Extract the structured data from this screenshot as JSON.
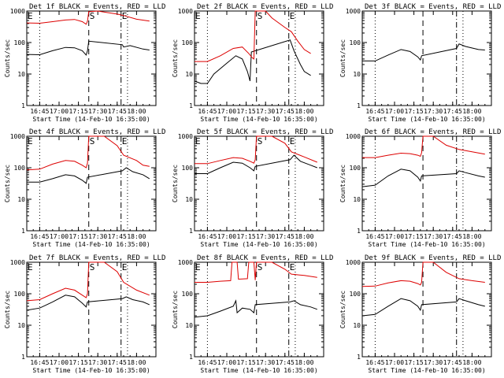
{
  "colors": {
    "events": "#000000",
    "lld": "#dd0000",
    "axes": "#000000",
    "background": "#ffffff"
  },
  "chart_data": [
    {
      "type": "line",
      "title": "Det 1f BLACK = Events, RED = LLD",
      "xlabel": "Start Time (14-Feb-10 16:35:00)",
      "ylabel": "Counts/sec",
      "yscale": "log",
      "ylim": [
        1,
        1000
      ],
      "xticks": [
        "16:45",
        "17:00",
        "17:15",
        "17:30",
        "17:45",
        "18:00"
      ],
      "yticks": [
        "1",
        "10",
        "100",
        "1000"
      ],
      "markers": [
        {
          "label": "E",
          "time": "16:35",
          "style": "dotted"
        },
        {
          "label": "",
          "time": "16:45",
          "style": "dotted"
        },
        {
          "label": "S",
          "time": "17:23",
          "style": "dashed"
        },
        {
          "label": "E",
          "time": "17:48",
          "style": "dashdot"
        },
        {
          "label": "",
          "time": "17:53",
          "style": "dotted"
        }
      ],
      "series": [
        {
          "name": "Events",
          "times": [
            "16:35",
            "16:45",
            "16:55",
            "17:05",
            "17:12",
            "17:18",
            "17:21",
            "17:22",
            "17:23",
            "17:49",
            "17:50",
            "17:55",
            "18:05",
            "18:10"
          ],
          "values": [
            42,
            41,
            55,
            70,
            68,
            55,
            40,
            55,
            110,
            85,
            72,
            80,
            62,
            58
          ]
        },
        {
          "name": "LLD",
          "times": [
            "16:35",
            "16:45",
            "16:55",
            "17:05",
            "17:12",
            "17:18",
            "17:21",
            "17:22",
            "17:23",
            "17:30",
            "17:45",
            "17:50",
            "18:00",
            "18:10"
          ],
          "values": [
            420,
            410,
            460,
            520,
            540,
            460,
            380,
            480,
            950,
            1000,
            800,
            720,
            550,
            480
          ]
        }
      ]
    },
    {
      "type": "line",
      "title": "Det 2f BLACK = Events, RED = LLD",
      "xlabel": "Start Time (14-Feb-10 16:35:00)",
      "ylabel": "Counts/sec",
      "yscale": "log",
      "ylim": [
        1,
        1000
      ],
      "xticks": [
        "16:45",
        "17:00",
        "17:15",
        "17:30",
        "17:45",
        "18:00"
      ],
      "yticks": [
        "1",
        "10",
        "100",
        "1000"
      ],
      "markers": [
        {
          "label": "E",
          "time": "16:35",
          "style": "dotted"
        },
        {
          "label": "",
          "time": "16:45",
          "style": "dotted"
        },
        {
          "label": "S",
          "time": "17:23",
          "style": "dashed"
        },
        {
          "label": "E",
          "time": "17:48",
          "style": "dashdot"
        },
        {
          "label": "",
          "time": "17:53",
          "style": "dotted"
        }
      ],
      "series": [
        {
          "name": "Events",
          "times": [
            "16:35",
            "16:40",
            "16:45",
            "16:50",
            "17:00",
            "17:07",
            "17:12",
            "17:16",
            "17:18",
            "17:19",
            "17:49",
            "17:52",
            "17:57",
            "18:00",
            "18:05"
          ],
          "values": [
            6,
            5,
            5,
            10,
            22,
            38,
            30,
            12,
            6,
            50,
            120,
            55,
            20,
            12,
            9
          ]
        },
        {
          "name": "LLD",
          "times": [
            "16:35",
            "16:45",
            "16:55",
            "17:05",
            "17:12",
            "17:17",
            "17:20",
            "17:21",
            "17:22",
            "17:30",
            "17:35",
            "17:45",
            "17:50",
            "17:55",
            "18:00",
            "18:05"
          ],
          "values": [
            25,
            25,
            38,
            65,
            72,
            45,
            32,
            30,
            1000,
            1000,
            600,
            300,
            220,
            110,
            60,
            45
          ]
        }
      ]
    },
    {
      "type": "line",
      "title": "Det 3f BLACK = Events, RED = LLD",
      "xlabel": "Start Time (14-Feb-10 16:35:00)",
      "ylabel": "Counts/sec",
      "yscale": "log",
      "ylim": [
        1,
        1000
      ],
      "xticks": [
        "16:45",
        "17:00",
        "17:15",
        "17:30",
        "17:45",
        "18:00"
      ],
      "yticks": [
        "1",
        "10",
        "100",
        "1000"
      ],
      "markers": [
        {
          "label": "",
          "time": "16:45",
          "style": "dotted"
        },
        {
          "label": "",
          "time": "17:22",
          "style": "dashed"
        },
        {
          "label": "",
          "time": "17:48",
          "style": "dashdot"
        },
        {
          "label": "",
          "time": "17:53",
          "style": "dotted"
        }
      ],
      "series": [
        {
          "name": "Events",
          "times": [
            "16:35",
            "16:45",
            "16:55",
            "17:05",
            "17:12",
            "17:18",
            "17:20",
            "17:21",
            "17:48",
            "17:50",
            "17:55",
            "18:05",
            "18:10"
          ],
          "values": [
            26,
            26,
            40,
            60,
            52,
            35,
            28,
            38,
            65,
            90,
            75,
            60,
            58
          ]
        }
      ]
    },
    {
      "type": "line",
      "title": "Det 4f BLACK = Events, RED = LLD",
      "xlabel": "Start Time (14-Feb-10 16:35:00)",
      "ylabel": "Counts/sec",
      "yscale": "log",
      "ylim": [
        1,
        1000
      ],
      "xticks": [
        "16:45",
        "17:00",
        "17:15",
        "17:30",
        "17:45",
        "18:00"
      ],
      "yticks": [
        "1",
        "10",
        "100",
        "1000"
      ],
      "markers": [
        {
          "label": "E",
          "time": "16:35",
          "style": "dotted"
        },
        {
          "label": "",
          "time": "16:45",
          "style": "dotted"
        },
        {
          "label": "S",
          "time": "17:23",
          "style": "dashed"
        },
        {
          "label": "E",
          "time": "17:48",
          "style": "dashdot"
        },
        {
          "label": "",
          "time": "17:53",
          "style": "dotted"
        }
      ],
      "series": [
        {
          "name": "Events",
          "times": [
            "16:35",
            "16:45",
            "16:55",
            "17:05",
            "17:12",
            "17:18",
            "17:21",
            "17:22",
            "17:49",
            "17:52",
            "17:57",
            "18:05",
            "18:10"
          ],
          "values": [
            35,
            35,
            45,
            60,
            55,
            40,
            32,
            50,
            80,
            100,
            75,
            60,
            45
          ]
        },
        {
          "name": "LLD",
          "times": [
            "16:35",
            "16:45",
            "16:55",
            "17:05",
            "17:12",
            "17:18",
            "17:21",
            "17:22",
            "17:23",
            "17:35",
            "17:45",
            "17:50",
            "18:00",
            "18:05",
            "18:10"
          ],
          "values": [
            85,
            90,
            130,
            170,
            160,
            120,
            100,
            140,
            1000,
            1000,
            500,
            250,
            170,
            120,
            110
          ]
        }
      ]
    },
    {
      "type": "line",
      "title": "Det 5f BLACK = Events, RED = LLD",
      "xlabel": "Start Time (14-Feb-10 16:35:00)",
      "ylabel": "Counts/sec",
      "yscale": "log",
      "ylim": [
        1,
        1000
      ],
      "xticks": [
        "16:45",
        "17:00",
        "17:15",
        "17:30",
        "17:45",
        "18:00"
      ],
      "yticks": [
        "1",
        "10",
        "100",
        "1000"
      ],
      "markers": [
        {
          "label": "E",
          "time": "16:35",
          "style": "dotted"
        },
        {
          "label": "",
          "time": "16:45",
          "style": "dotted"
        },
        {
          "label": "S",
          "time": "17:23",
          "style": "dashed"
        },
        {
          "label": "E",
          "time": "17:48",
          "style": "dashdot"
        },
        {
          "label": "",
          "time": "17:53",
          "style": "dotted"
        }
      ],
      "series": [
        {
          "name": "Events",
          "times": [
            "16:35",
            "16:45",
            "16:55",
            "17:05",
            "17:12",
            "17:18",
            "17:21",
            "17:22",
            "17:49",
            "17:52",
            "17:57",
            "18:05",
            "18:10"
          ],
          "values": [
            65,
            65,
            100,
            150,
            140,
            100,
            80,
            110,
            180,
            250,
            160,
            120,
            100
          ]
        },
        {
          "name": "LLD",
          "times": [
            "16:35",
            "16:45",
            "16:55",
            "17:05",
            "17:12",
            "17:18",
            "17:21",
            "17:22",
            "17:23",
            "17:35",
            "17:45",
            "17:50",
            "18:00",
            "18:10"
          ],
          "values": [
            135,
            135,
            170,
            210,
            200,
            160,
            140,
            180,
            1000,
            1000,
            600,
            320,
            220,
            150
          ]
        }
      ]
    },
    {
      "type": "line",
      "title": "Det 6f BLACK = Events, RED = LLD",
      "xlabel": "Start Time (14-Feb-10 16:35:00)",
      "ylabel": "Counts/sec",
      "yscale": "log",
      "ylim": [
        1,
        1000
      ],
      "xticks": [
        "16:45",
        "17:00",
        "17:15",
        "17:30",
        "17:45",
        "18:00"
      ],
      "yticks": [
        "1",
        "10",
        "100",
        "1000"
      ],
      "markers": [
        {
          "label": "",
          "time": "16:45",
          "style": "dotted"
        },
        {
          "label": "",
          "time": "17:22",
          "style": "dashed"
        },
        {
          "label": "",
          "time": "17:48",
          "style": "dashdot"
        },
        {
          "label": "",
          "time": "17:53",
          "style": "dotted"
        }
      ],
      "series": [
        {
          "name": "Events",
          "times": [
            "16:35",
            "16:45",
            "16:55",
            "17:05",
            "17:12",
            "17:18",
            "17:20",
            "17:21",
            "17:48",
            "17:50",
            "17:55",
            "18:05",
            "18:10"
          ],
          "values": [
            25,
            28,
            55,
            90,
            80,
            50,
            38,
            55,
            65,
            80,
            70,
            55,
            50
          ]
        },
        {
          "name": "LLD",
          "times": [
            "16:35",
            "16:45",
            "16:55",
            "17:05",
            "17:12",
            "17:18",
            "17:20",
            "17:21",
            "17:22",
            "17:30",
            "17:40",
            "17:50",
            "18:00",
            "18:10"
          ],
          "values": [
            210,
            210,
            250,
            290,
            280,
            250,
            230,
            300,
            1000,
            1000,
            520,
            380,
            320,
            270
          ]
        }
      ]
    },
    {
      "type": "line",
      "title": "Det 7f BLACK = Events, RED = LLD",
      "xlabel": "Start Time (14-Feb-10 16:35:00)",
      "ylabel": "Counts/sec",
      "yscale": "log",
      "ylim": [
        1,
        1000
      ],
      "xticks": [
        "16:45",
        "17:00",
        "17:15",
        "17:30",
        "17:45",
        "18:00"
      ],
      "yticks": [
        "1",
        "10",
        "100",
        "1000"
      ],
      "markers": [
        {
          "label": "E",
          "time": "16:35",
          "style": "dotted"
        },
        {
          "label": "",
          "time": "16:45",
          "style": "dotted"
        },
        {
          "label": "S",
          "time": "17:23",
          "style": "dashed"
        },
        {
          "label": "E",
          "time": "17:48",
          "style": "dashdot"
        },
        {
          "label": "",
          "time": "17:53",
          "style": "dotted"
        }
      ],
      "series": [
        {
          "name": "Events",
          "times": [
            "16:35",
            "16:45",
            "16:55",
            "17:05",
            "17:12",
            "17:18",
            "17:21",
            "17:22",
            "17:49",
            "17:52",
            "17:57",
            "18:05",
            "18:10"
          ],
          "values": [
            30,
            35,
            55,
            90,
            80,
            50,
            38,
            55,
            70,
            80,
            65,
            55,
            45
          ]
        },
        {
          "name": "LLD",
          "times": [
            "16:35",
            "16:45",
            "16:55",
            "17:05",
            "17:12",
            "17:18",
            "17:21",
            "17:22",
            "17:23",
            "17:35",
            "17:45",
            "17:50",
            "18:00",
            "18:10"
          ],
          "values": [
            60,
            65,
            100,
            150,
            130,
            90,
            75,
            100,
            1000,
            1000,
            500,
            230,
            130,
            90
          ]
        }
      ]
    },
    {
      "type": "line",
      "title": "Det 8f BLACK = Events, RED = LLD",
      "xlabel": "Start Time (14-Feb-10 16:35:00)",
      "ylabel": "Counts/sec",
      "yscale": "log",
      "ylim": [
        1,
        1000
      ],
      "xticks": [
        "16:45",
        "17:00",
        "17:15",
        "17:30",
        "17:45",
        "18:00"
      ],
      "yticks": [
        "1",
        "10",
        "100",
        "1000"
      ],
      "markers": [
        {
          "label": "E",
          "time": "16:35",
          "style": "dotted"
        },
        {
          "label": "",
          "time": "16:45",
          "style": "dotted"
        },
        {
          "label": "S",
          "time": "17:23",
          "style": "dashed"
        },
        {
          "label": "E",
          "time": "17:48",
          "style": "dashdot"
        },
        {
          "label": "",
          "time": "17:53",
          "style": "dotted"
        }
      ],
      "series": [
        {
          "name": "Events",
          "times": [
            "16:35",
            "16:45",
            "16:55",
            "17:05",
            "17:07",
            "17:08",
            "17:12",
            "17:18",
            "17:21",
            "17:22",
            "17:49",
            "17:52",
            "17:57",
            "18:05",
            "18:10"
          ],
          "values": [
            18,
            20,
            28,
            40,
            60,
            25,
            35,
            32,
            25,
            45,
            55,
            60,
            45,
            38,
            32
          ]
        },
        {
          "name": "LLD",
          "times": [
            "16:35",
            "16:45",
            "16:55",
            "17:03",
            "17:04",
            "17:08",
            "17:09",
            "17:16",
            "17:17",
            "17:21",
            "17:22",
            "17:23",
            "17:35",
            "17:45",
            "17:50",
            "18:00",
            "18:10"
          ],
          "values": [
            230,
            230,
            250,
            260,
            1000,
            1000,
            290,
            300,
            1000,
            1000,
            270,
            1000,
            1000,
            600,
            420,
            380,
            330
          ]
        }
      ]
    },
    {
      "type": "line",
      "title": "Det 9f BLACK = Events, RED = LLD",
      "xlabel": "Start Time (14-Feb-10 16:35:00)",
      "ylabel": "Counts/sec",
      "yscale": "log",
      "ylim": [
        1,
        1000
      ],
      "xticks": [
        "16:45",
        "17:00",
        "17:15",
        "17:30",
        "17:45",
        "18:00"
      ],
      "yticks": [
        "1",
        "10",
        "100",
        "1000"
      ],
      "markers": [
        {
          "label": "",
          "time": "16:45",
          "style": "dotted"
        },
        {
          "label": "",
          "time": "17:22",
          "style": "dashed"
        },
        {
          "label": "",
          "time": "17:48",
          "style": "dashdot"
        },
        {
          "label": "",
          "time": "17:53",
          "style": "dotted"
        }
      ],
      "series": [
        {
          "name": "Events",
          "times": [
            "16:35",
            "16:45",
            "16:55",
            "17:05",
            "17:12",
            "17:18",
            "17:20",
            "17:21",
            "17:48",
            "17:50",
            "17:55",
            "18:05",
            "18:10"
          ],
          "values": [
            20,
            22,
            40,
            70,
            60,
            40,
            30,
            45,
            55,
            70,
            60,
            45,
            40
          ]
        },
        {
          "name": "LLD",
          "times": [
            "16:35",
            "16:45",
            "16:55",
            "17:05",
            "17:12",
            "17:18",
            "17:20",
            "17:21",
            "17:22",
            "17:30",
            "17:40",
            "17:50",
            "18:00",
            "18:10"
          ],
          "values": [
            170,
            175,
            220,
            260,
            250,
            210,
            190,
            230,
            1000,
            1000,
            480,
            300,
            260,
            230
          ]
        }
      ]
    }
  ]
}
